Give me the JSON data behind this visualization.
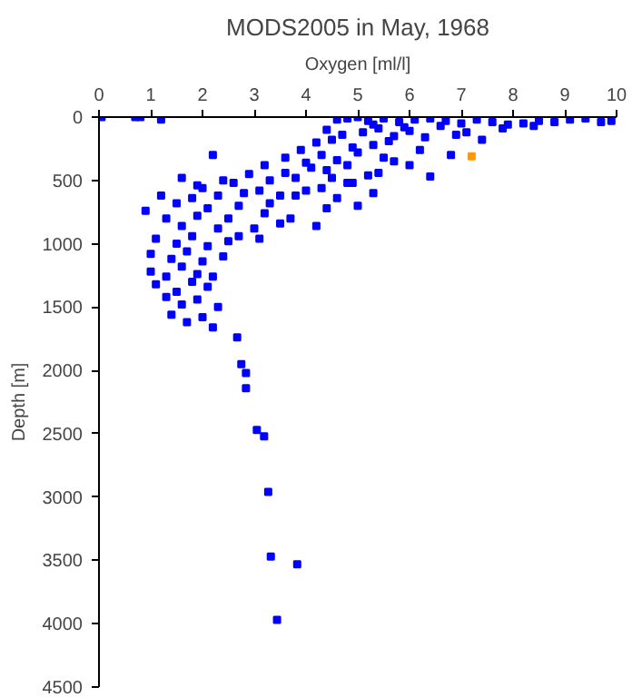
{
  "chart_data": {
    "type": "scatter",
    "title": "MODS2005 in May, 1968",
    "xlabel": "Oxygen [ml/l]",
    "ylabel": "Depth [m]",
    "xlim": [
      0,
      10
    ],
    "ylim": [
      4500,
      0
    ],
    "xticks": [
      0,
      1,
      2,
      3,
      4,
      5,
      6,
      7,
      8,
      9,
      10
    ],
    "yticks": [
      0,
      500,
      1000,
      1500,
      2000,
      2500,
      3000,
      3500,
      4000,
      4500
    ],
    "grid": false,
    "marker": "square",
    "series": [
      {
        "color": "#0000ff",
        "x": [
          0.05,
          0.7,
          0.8,
          1.2,
          4.6,
          4.8,
          5.0,
          5.2,
          5.5,
          5.8,
          6.1,
          6.4,
          6.7,
          7.0,
          7.3,
          7.6,
          7.9,
          8.2,
          8.5,
          8.8,
          9.1,
          9.4,
          9.7,
          9.9,
          5.3,
          5.9,
          6.6,
          7.1,
          7.8,
          8.4,
          4.4,
          4.7,
          5.1,
          5.4,
          5.7,
          6.0,
          6.3,
          6.9,
          7.4,
          4.2,
          4.5,
          4.9,
          5.3,
          5.6,
          6.2,
          6.8,
          3.9,
          4.3,
          4.6,
          5.0,
          5.5,
          6.0,
          3.6,
          4.0,
          4.4,
          4.8,
          5.2,
          5.7,
          3.2,
          3.6,
          4.1,
          4.5,
          4.9,
          5.4,
          6.4,
          2.9,
          3.3,
          3.8,
          4.3,
          4.8,
          5.3,
          2.6,
          3.1,
          3.5,
          4.0,
          4.6,
          5.0,
          2.0,
          2.4,
          2.8,
          3.3,
          3.8,
          4.4,
          2.2,
          1.6,
          1.9,
          2.3,
          2.7,
          3.2,
          3.7,
          4.2,
          1.2,
          1.5,
          1.8,
          2.1,
          2.5,
          3.0,
          3.5,
          0.9,
          1.3,
          1.6,
          1.9,
          2.3,
          2.7,
          3.1,
          1.1,
          1.5,
          1.8,
          2.1,
          2.5,
          1.0,
          1.4,
          1.7,
          2.0,
          2.4,
          1.0,
          1.3,
          1.6,
          1.9,
          2.2,
          1.1,
          1.5,
          1.8,
          2.1,
          1.3,
          1.6,
          1.9,
          2.3,
          1.4,
          1.7,
          2.0,
          2.2,
          2.67,
          2.75,
          2.84,
          2.84,
          3.05,
          3.19,
          3.27,
          3.32,
          3.83,
          3.44
        ],
        "values": [
          0,
          0,
          0,
          20,
          20,
          10,
          0,
          30,
          10,
          40,
          20,
          10,
          30,
          50,
          20,
          40,
          60,
          50,
          30,
          40,
          20,
          10,
          40,
          30,
          60,
          80,
          70,
          120,
          90,
          70,
          100,
          140,
          120,
          90,
          150,
          110,
          160,
          140,
          180,
          200,
          180,
          240,
          220,
          190,
          260,
          300,
          260,
          300,
          340,
          280,
          320,
          380,
          320,
          360,
          420,
          380,
          460,
          350,
          380,
          440,
          400,
          480,
          520,
          440,
          470,
          450,
          500,
          480,
          560,
          520,
          600,
          520,
          580,
          620,
          580,
          640,
          700,
          560,
          500,
          600,
          680,
          620,
          720,
          300,
          480,
          540,
          620,
          700,
          760,
          800,
          860,
          620,
          680,
          640,
          720,
          800,
          880,
          840,
          740,
          800,
          860,
          780,
          880,
          940,
          960,
          960,
          1000,
          940,
          1020,
          980,
          1080,
          1120,
          1060,
          1140,
          1100,
          1220,
          1260,
          1180,
          1240,
          1260,
          1320,
          1380,
          1300,
          1340,
          1420,
          1480,
          1440,
          1500,
          1560,
          1620,
          1580,
          1660,
          1740,
          1950,
          2020,
          2140,
          2470,
          2520,
          2960,
          3470,
          3530,
          3970
        ]
      },
      {
        "color": "#ff9900",
        "x": [
          7.2
        ],
        "values": [
          310
        ]
      }
    ]
  }
}
